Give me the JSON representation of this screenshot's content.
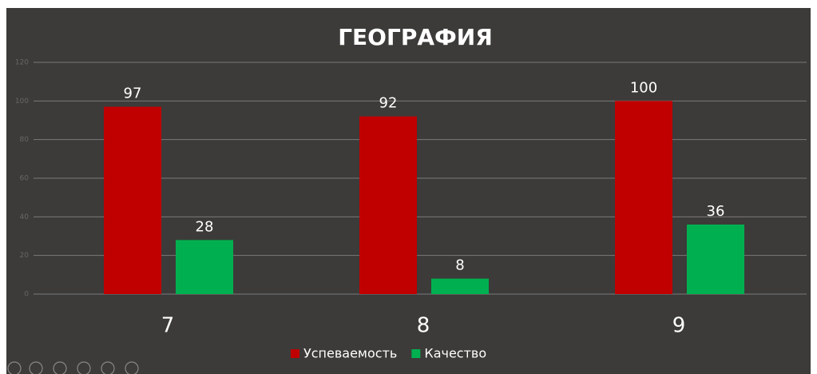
{
  "chart_data": {
    "type": "bar",
    "title": "ГЕОГРАФИЯ",
    "categories": [
      "7",
      "8",
      "9"
    ],
    "series": [
      {
        "name": "Успеваемость",
        "color": "#c00000",
        "values": [
          97,
          92,
          100
        ]
      },
      {
        "name": "Качество",
        "color": "#00b050",
        "values": [
          28,
          8,
          36
        ]
      }
    ],
    "ylim": [
      0,
      120
    ],
    "yticks": [
      0,
      20,
      40,
      60,
      80,
      100,
      120
    ],
    "grid": true,
    "legend": "bottom"
  }
}
